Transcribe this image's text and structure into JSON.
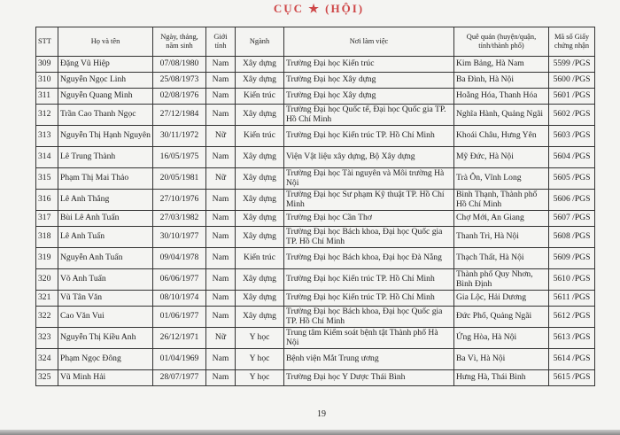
{
  "stamp_text": "CỤC ★ (HỘI)",
  "headers": {
    "stt": "STT",
    "name": "Họ và tên",
    "dob": "Ngày, tháng, năm sinh",
    "gender": "Giới tính",
    "field": "Ngành",
    "workplace": "Nơi làm việc",
    "hometown": "Quê quán (huyện/quận, tỉnh/thành phố)",
    "cert": "Mã số Giấy chứng nhận"
  },
  "rows": [
    {
      "stt": "309",
      "name": "Đặng Vũ Hiệp",
      "dob": "07/08/1980",
      "gender": "Nam",
      "field": "Xây dựng",
      "workplace": "Trường Đại học Kiến trúc",
      "hometown": "Kim Bảng, Hà Nam",
      "cert": "5599 /PGS"
    },
    {
      "stt": "310",
      "name": "Nguyễn Ngọc Linh",
      "dob": "25/08/1973",
      "gender": "Nam",
      "field": "Xây dựng",
      "workplace": "Trường Đại học Xây dựng",
      "hometown": "Ba Đình, Hà Nội",
      "cert": "5600 /PGS"
    },
    {
      "stt": "311",
      "name": "Nguyễn Quang Minh",
      "dob": "02/08/1976",
      "gender": "Nam",
      "field": "Kiến trúc",
      "workplace": "Trường Đại học Xây dựng",
      "hometown": "Hoằng Hóa, Thanh Hóa",
      "cert": "5601 /PGS"
    },
    {
      "stt": "312",
      "name": "Trần Cao Thanh Ngọc",
      "dob": "27/12/1984",
      "gender": "Nam",
      "field": "Xây dựng",
      "workplace": "Trường Đại học Quốc tế, Đại học Quốc gia TP. Hồ Chí Minh",
      "hometown": "Nghĩa Hành, Quảng Ngãi",
      "cert": "5602 /PGS"
    },
    {
      "stt": "313",
      "name": "Nguyễn Thị Hạnh Nguyên",
      "dob": "30/11/1972",
      "gender": "Nữ",
      "field": "Kiến trúc",
      "workplace": "Trường Đại học Kiến trúc TP. Hồ Chí Minh",
      "hometown": "Khoái Châu, Hưng Yên",
      "cert": "5603 /PGS"
    },
    {
      "stt": "314",
      "name": "Lê Trung Thành",
      "dob": "16/05/1975",
      "gender": "Nam",
      "field": "Xây dựng",
      "workplace": "Viện Vật liệu xây dựng, Bộ Xây dựng",
      "hometown": "Mỹ Đức, Hà Nội",
      "cert": "5604 /PGS"
    },
    {
      "stt": "315",
      "name": "Phạm Thị Mai Thảo",
      "dob": "20/05/1981",
      "gender": "Nữ",
      "field": "Xây dựng",
      "workplace": "Trường Đại học Tài nguyên và Môi trường Hà Nội",
      "hometown": "Trà Ôn, Vĩnh Long",
      "cert": "5605 /PGS"
    },
    {
      "stt": "316",
      "name": "Lê Anh Thắng",
      "dob": "27/10/1976",
      "gender": "Nam",
      "field": "Xây dựng",
      "workplace": "Trường Đại học Sư phạm Kỹ thuật TP. Hồ Chí Minh",
      "hometown": "Bình Thạnh, Thành phố Hồ Chí Minh",
      "cert": "5606 /PGS"
    },
    {
      "stt": "317",
      "name": "Bùi Lê Anh Tuấn",
      "dob": "27/03/1982",
      "gender": "Nam",
      "field": "Xây dựng",
      "workplace": "Trường Đại học Cần Thơ",
      "hometown": "Chợ Mới, An Giang",
      "cert": "5607 /PGS"
    },
    {
      "stt": "318",
      "name": "Lê Anh Tuấn",
      "dob": "30/10/1977",
      "gender": "Nam",
      "field": "Xây dựng",
      "workplace": "Trường Đại học Bách khoa, Đại học Quốc gia TP. Hồ Chí Minh",
      "hometown": "Thanh Trì, Hà Nội",
      "cert": "5608 /PGS"
    },
    {
      "stt": "319",
      "name": "Nguyễn Anh Tuấn",
      "dob": "09/04/1978",
      "gender": "Nam",
      "field": "Kiến trúc",
      "workplace": "Trường Đại học Bách khoa, Đại học Đà Nẵng",
      "hometown": "Thạch Thất, Hà Nội",
      "cert": "5609 /PGS"
    },
    {
      "stt": "320",
      "name": "Võ Anh Tuấn",
      "dob": "06/06/1977",
      "gender": "Nam",
      "field": "Xây dựng",
      "workplace": "Trường Đại học Kiến trúc TP. Hồ Chí Minh",
      "hometown": "Thành phố Quy Nhơn, Bình Định",
      "cert": "5610 /PGS"
    },
    {
      "stt": "321",
      "name": "Vũ Tân Văn",
      "dob": "08/10/1974",
      "gender": "Nam",
      "field": "Xây dựng",
      "workplace": "Trường Đại học Kiến trúc TP. Hồ Chí Minh",
      "hometown": "Gia Lộc, Hải Dương",
      "cert": "5611 /PGS"
    },
    {
      "stt": "322",
      "name": "Cao Văn Vui",
      "dob": "01/06/1977",
      "gender": "Nam",
      "field": "Xây dựng",
      "workplace": "Trường Đại học Bách khoa, Đại học Quốc gia TP. Hồ Chí Minh",
      "hometown": "Đức Phổ, Quảng Ngãi",
      "cert": "5612 /PGS"
    },
    {
      "stt": "323",
      "name": "Nguyễn Thị Kiều Anh",
      "dob": "26/12/1971",
      "gender": "Nữ",
      "field": "Y học",
      "workplace": "Trung tâm Kiểm soát bệnh tật Thành phố Hà Nội",
      "hometown": "Ứng Hòa, Hà Nội",
      "cert": "5613 /PGS"
    },
    {
      "stt": "324",
      "name": "Phạm Ngọc Đông",
      "dob": "01/04/1969",
      "gender": "Nam",
      "field": "Y học",
      "workplace": "Bệnh viện Mắt Trung ương",
      "hometown": "Ba Vì, Hà Nội",
      "cert": "5614 /PGS"
    },
    {
      "stt": "325",
      "name": "Vũ Minh Hải",
      "dob": "28/07/1977",
      "gender": "Nam",
      "field": "Y học",
      "workplace": "Trường Đại học Y Dược Thái Bình",
      "hometown": "Hưng Hà, Thái Bình",
      "cert": "5615 /PGS"
    }
  ],
  "page_number": "19"
}
